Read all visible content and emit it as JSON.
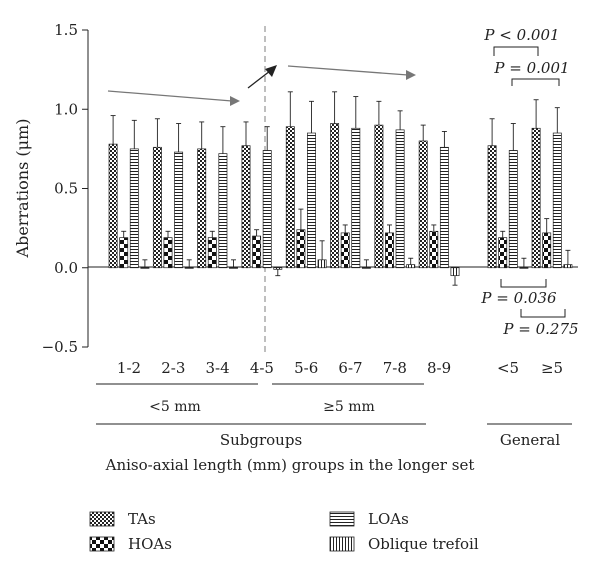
{
  "chart_data": {
    "type": "bar",
    "ylabel": "Aberrations (μm)",
    "ylim": [
      -0.5,
      1.5
    ],
    "yticks": [
      "1.5",
      "1.0",
      "0.5",
      "0.0",
      "−0.5"
    ],
    "ytick_values": [
      1.5,
      1.0,
      0.5,
      0.0,
      -0.5
    ],
    "xlabel": "Aniso-axial length (mm) groups in the longer set",
    "categories": [
      "1-2",
      "2-3",
      "3-4",
      "4-5",
      "5-6",
      "6-7",
      "7-8",
      "8-9",
      "<5",
      "≥5"
    ],
    "series": [
      {
        "name": "TAs",
        "values": [
          0.78,
          0.76,
          0.75,
          0.77,
          0.89,
          0.91,
          0.9,
          0.8,
          0.77,
          0.88
        ],
        "errors": [
          0.18,
          0.18,
          0.17,
          0.15,
          0.22,
          0.2,
          0.15,
          0.1,
          0.17,
          0.18
        ]
      },
      {
        "name": "HOAs",
        "values": [
          0.19,
          0.19,
          0.19,
          0.2,
          0.24,
          0.22,
          0.22,
          0.23,
          0.19,
          0.22
        ],
        "errors": [
          0.04,
          0.04,
          0.04,
          0.04,
          0.13,
          0.05,
          0.05,
          0.04,
          0.04,
          0.09
        ]
      },
      {
        "name": "LOAs",
        "values": [
          0.75,
          0.73,
          0.72,
          0.74,
          0.85,
          0.88,
          0.87,
          0.76,
          0.74,
          0.85
        ],
        "errors": [
          0.18,
          0.18,
          0.17,
          0.15,
          0.2,
          0.2,
          0.12,
          0.1,
          0.17,
          0.16
        ]
      },
      {
        "name": "Oblique trefoil",
        "values": [
          0.0,
          0.0,
          0.0,
          -0.01,
          0.05,
          0.0,
          0.02,
          -0.05,
          0.0,
          0.02
        ],
        "errors": [
          0.05,
          0.05,
          0.05,
          0.04,
          0.12,
          0.05,
          0.04,
          0.06,
          0.06,
          0.09
        ]
      }
    ],
    "subgroup_labels": {
      "lt5": "<5 mm",
      "ge5": "≥5 mm"
    },
    "group_labels": {
      "subgroups": "Subgroups",
      "general": "General"
    },
    "annotations": [
      {
        "id": "p1",
        "text": "P < 0.001"
      },
      {
        "id": "p2",
        "text": "P = 0.001"
      },
      {
        "id": "p3",
        "text": "P = 0.036"
      },
      {
        "id": "p4",
        "text": "P = 0.275"
      }
    ],
    "legend": [
      {
        "name": "TAs",
        "pattern": "checker-small",
        "position": "bottom-left"
      },
      {
        "name": "HOAs",
        "pattern": "checker-large",
        "position": "bottom-left"
      },
      {
        "name": "LOAs",
        "pattern": "horizontal",
        "position": "bottom-right"
      },
      {
        "name": "Oblique trefoil",
        "pattern": "vertical",
        "position": "bottom-right"
      }
    ],
    "grid": false,
    "legend_placement": "bottom"
  }
}
